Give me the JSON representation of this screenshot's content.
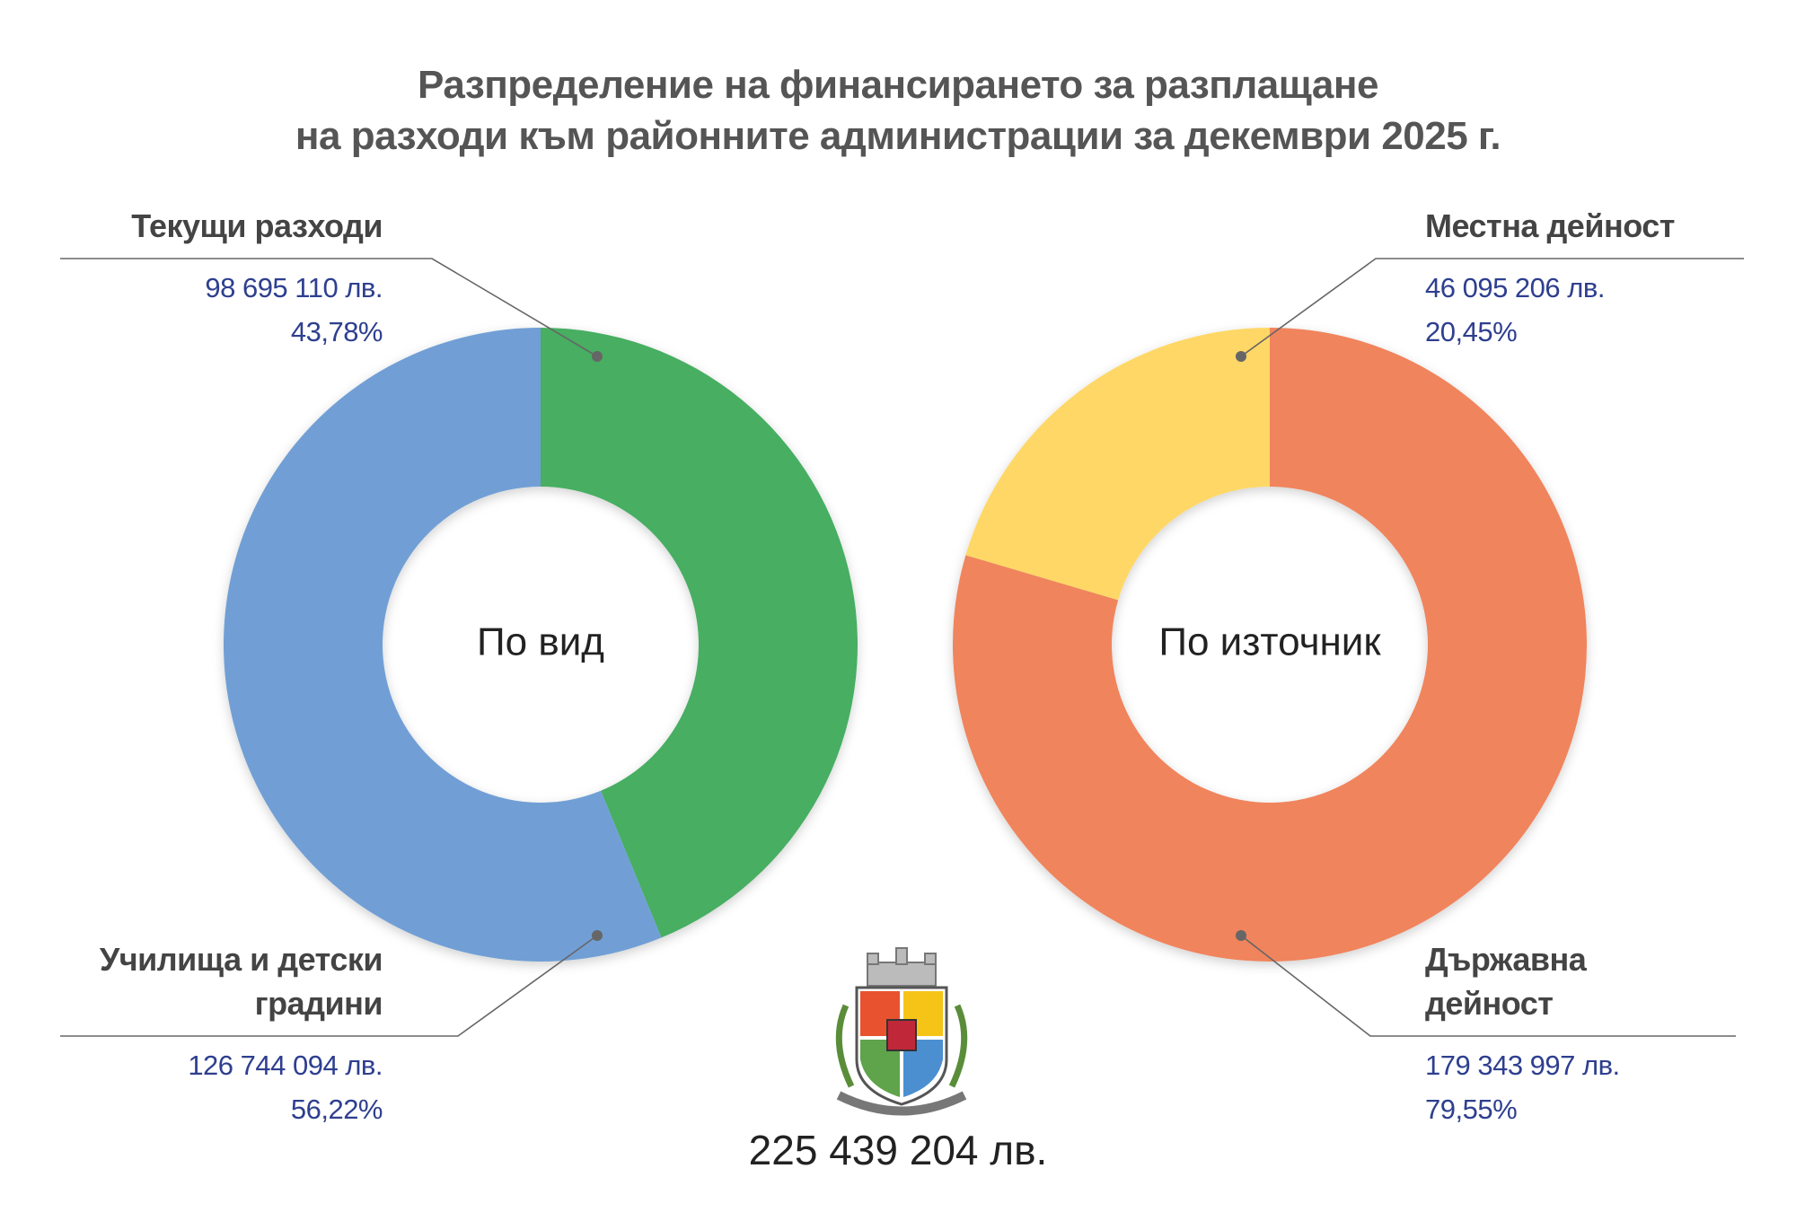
{
  "title": [
    "Разпределение на финансирането за разплащане",
    "на разходи към районните администрации за декември 2025 г."
  ],
  "chart_data": [
    {
      "type": "donut",
      "center_label": "По вид",
      "categories": [
        "Текущи разходи",
        "Училища и детски градини"
      ],
      "values": [
        98695110,
        126744094
      ],
      "value_labels": [
        "98 695 110 лв.",
        "126 744 094 лв."
      ],
      "percentages": [
        43.78,
        56.22
      ],
      "percentage_labels": [
        "43,78%",
        "56,22%"
      ],
      "colors": [
        "#46ae62",
        "#719fd5"
      ]
    },
    {
      "type": "donut",
      "center_label": "По източник",
      "categories": [
        "Държавна дейност",
        "Местна дейност"
      ],
      "values": [
        179343997,
        46095206
      ],
      "value_labels": [
        "179 343 997 лв.",
        "46 095 206 лв."
      ],
      "percentages": [
        79.55,
        20.45
      ],
      "percentage_labels": [
        "79,55%",
        "20,45%"
      ],
      "colors": [
        "#f0845d",
        "#fed766"
      ]
    }
  ],
  "total_label": "225 439 204 лв."
}
